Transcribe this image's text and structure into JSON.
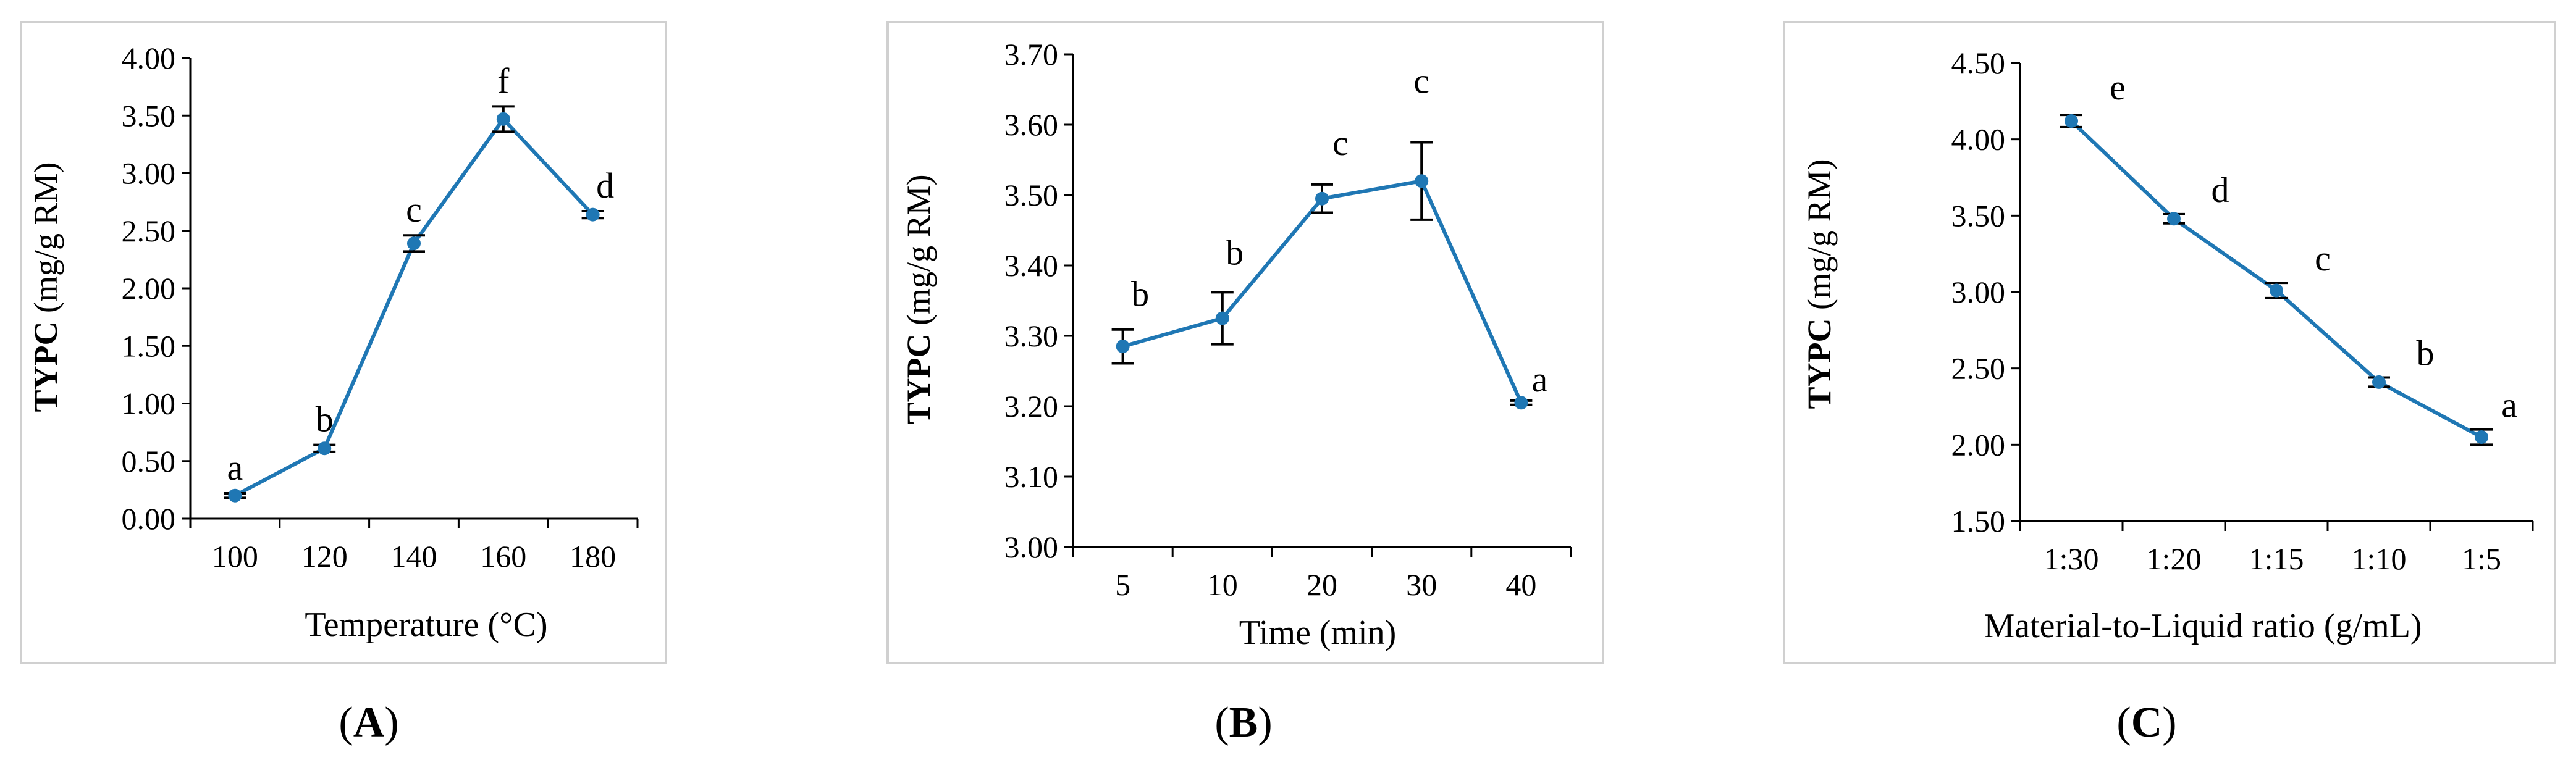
{
  "chart_data": [
    {
      "type": "line",
      "panel": "A",
      "ylabel_bold": "TYPC",
      "ylabel_rest": " (mg/g RM)",
      "xlabel": "Temperature (°C)",
      "categories": [
        "100",
        "120",
        "140",
        "160",
        "180"
      ],
      "values": [
        0.2,
        0.61,
        2.39,
        3.47,
        2.64
      ],
      "errors": [
        0.02,
        0.03,
        0.07,
        0.11,
        0.03
      ],
      "significance": [
        "a",
        "b",
        "c",
        "f",
        "d"
      ],
      "ylim": [
        0.0,
        4.0
      ],
      "yticks": [
        "0.00",
        "0.50",
        "1.00",
        "1.50",
        "2.00",
        "2.50",
        "3.00",
        "3.50",
        "4.00"
      ],
      "line_color": "#1f77b4",
      "caption_open": "(",
      "caption_letter": "A",
      "caption_close": ")"
    },
    {
      "type": "line",
      "panel": "B",
      "ylabel_bold": "TYPC",
      "ylabel_rest": " (mg/g RM)",
      "xlabel": "Time (min)",
      "categories": [
        "5",
        "10",
        "20",
        "30",
        "40"
      ],
      "values": [
        3.285,
        3.325,
        3.495,
        3.52,
        3.205
      ],
      "errors": [
        0.024,
        0.037,
        0.02,
        0.055,
        0.003
      ],
      "significance": [
        "b",
        "b",
        "c",
        "c",
        "a"
      ],
      "ylim": [
        3.0,
        3.7
      ],
      "yticks": [
        "3.00",
        "3.10",
        "3.20",
        "3.30",
        "3.40",
        "3.50",
        "3.60",
        "3.70"
      ],
      "line_color": "#1f77b4",
      "caption_open": "(",
      "caption_letter": "B",
      "caption_close": ")"
    },
    {
      "type": "line",
      "panel": "C",
      "ylabel_bold": "TYPC",
      "ylabel_rest": " (mg/g RM)",
      "xlabel": "Material-to-Liquid ratio (g/mL)",
      "categories": [
        "1:30",
        "1:20",
        "1:15",
        "1:10",
        "1:5"
      ],
      "values": [
        4.12,
        3.48,
        3.01,
        2.41,
        2.05
      ],
      "errors": [
        0.04,
        0.03,
        0.05,
        0.03,
        0.05
      ],
      "significance": [
        "e",
        "d",
        "c",
        "b",
        "a"
      ],
      "ylim": [
        1.5,
        4.5
      ],
      "yticks": [
        "1.50",
        "2.00",
        "2.50",
        "3.00",
        "3.50",
        "4.00",
        "4.50"
      ],
      "line_color": "#1f77b4",
      "caption_open": "(",
      "caption_letter": "C",
      "caption_close": ")"
    }
  ]
}
